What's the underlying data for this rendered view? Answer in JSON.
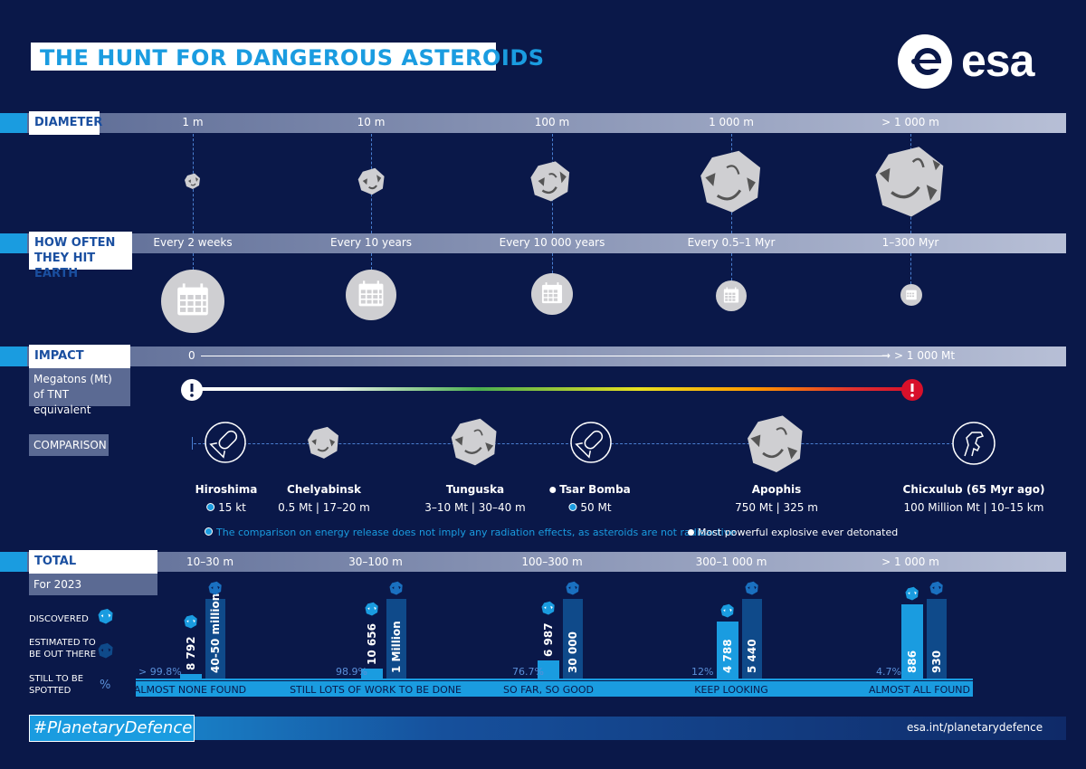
{
  "title": "THE HUNT FOR DANGEROUS ASTEROIDS",
  "logo_text": "esa",
  "diameter": {
    "label": "DIAMETER",
    "sizes": [
      "1 m",
      "10 m",
      "100 m",
      "1 000 m",
      "> 1 000 m"
    ]
  },
  "frequency": {
    "label_line1": "HOW OFTEN",
    "label_line2": "THEY HIT EARTH",
    "values": [
      "Every 2 weeks",
      "Every 10 years",
      "Every 10 000 years",
      "Every 0.5–1 Myr",
      "1–300 Myr"
    ]
  },
  "energy": {
    "label": "IMPACT ENERGY",
    "sub_line1": "Megatons (Mt)",
    "sub_line2": "of TNT equivalent",
    "scale_min": "0",
    "scale_max": "> 1 000 Mt"
  },
  "comparison": {
    "label": "COMPARISON",
    "items": [
      {
        "name": "Hiroshima",
        "value": "15 kt",
        "icon": "bomb-icon",
        "bullet": "blue"
      },
      {
        "name": "Chelyabinsk",
        "value": "0.5 Mt | 17–20 m",
        "icon": "asteroid-icon"
      },
      {
        "name": "Tunguska",
        "value": "3–10 Mt | 30–40 m",
        "icon": "asteroid-icon"
      },
      {
        "name": "Tsar Bomba",
        "value": "50 Mt",
        "icon": "bomb-icon",
        "bullet": "both"
      },
      {
        "name": "Apophis",
        "value": "750 Mt | 325 m",
        "icon": "asteroid-icon"
      },
      {
        "name": "Chicxulub (65 Myr ago)",
        "value": "100 Million Mt | 10–15 km",
        "icon": "dinosaur-icon"
      }
    ],
    "note_radiation": "The comparison on energy release does not imply any radiation effects, as asteroids are not radioactive",
    "note_tsar": "Most powerful explosive ever detonated"
  },
  "populations": {
    "label": "TOTAL POPULATIONS",
    "sub": "For 2023",
    "legend": {
      "discovered": "DISCOVERED",
      "estimated_line1": "ESTIMATED TO",
      "estimated_line2": "BE OUT THERE",
      "spotted_line1": "STILL TO BE",
      "spotted_line2": "SPOTTED",
      "percent_symbol": "%"
    },
    "groups": [
      {
        "range": "10–30 m",
        "discovered": "8 792",
        "estimated": "40-50 million",
        "remaining": "> 99.8%",
        "status": "ALMOST NONE FOUND",
        "discovered_frac": 0.06,
        "estimated_frac": 1.0
      },
      {
        "range": "30–100 m",
        "discovered": "10 656",
        "estimated": "1 Million",
        "remaining": "98.9%",
        "status": "STILL LOTS OF WORK TO BE DONE",
        "discovered_frac": 0.13,
        "estimated_frac": 1.0
      },
      {
        "range": "100–300 m",
        "discovered": "6 987",
        "estimated": "30 000",
        "remaining": "76.7%",
        "status": "SO FAR, SO GOOD",
        "discovered_frac": 0.23,
        "estimated_frac": 1.0
      },
      {
        "range": "300–1 000 m",
        "discovered": "4 788",
        "estimated": "5 440",
        "remaining": "12%",
        "status": "KEEP LOOKING",
        "discovered_frac": 0.72,
        "estimated_frac": 1.0
      },
      {
        "range": "> 1 000 m",
        "discovered": "886",
        "estimated": "930",
        "remaining": "4.7%",
        "status": "ALMOST ALL FOUND",
        "discovered_frac": 0.93,
        "estimated_frac": 1.0
      }
    ]
  },
  "footer": {
    "hashtag": "#PlanetaryDefence",
    "url": "esa.int/planetarydefence"
  },
  "colors": {
    "background": "#0a1849",
    "accent": "#1a9ce0",
    "dark_bar": "#0f4a8a",
    "asteroid": "#cfcfd2"
  }
}
